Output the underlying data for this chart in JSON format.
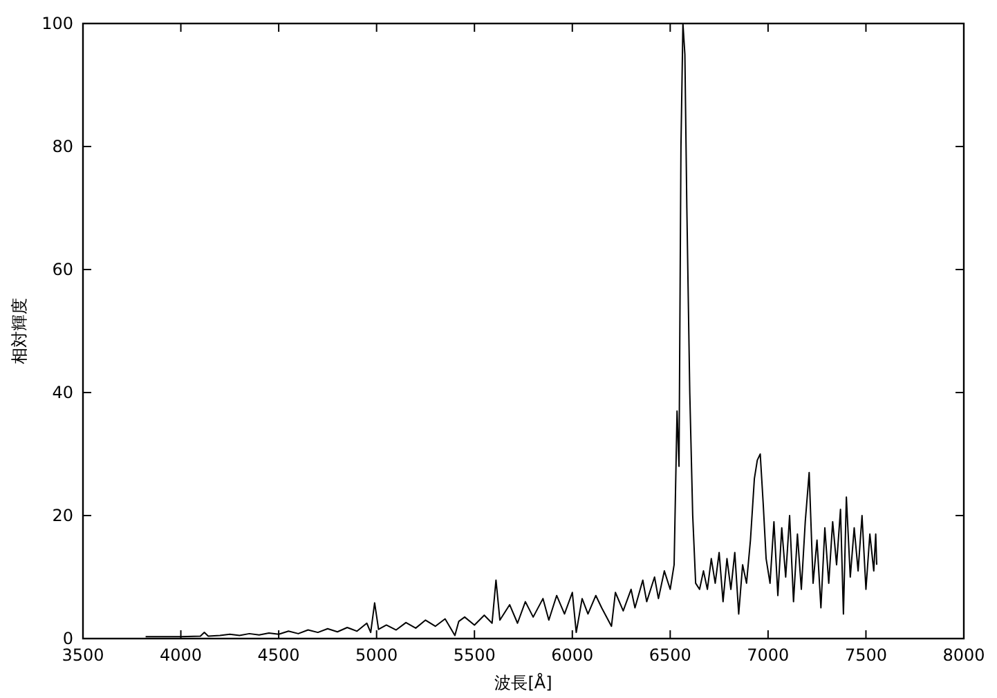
{
  "chart_data": {
    "type": "line",
    "xlabel": "波長[Å]",
    "ylabel": "相対輝度",
    "xlim": [
      3500,
      8000
    ],
    "xticks": [
      3500,
      4000,
      4500,
      5000,
      5500,
      6000,
      6500,
      7000,
      7500,
      8000
    ],
    "ylim": [
      0,
      100
    ],
    "yticks": [
      0,
      20,
      40,
      60,
      80,
      100
    ],
    "grid": false,
    "series": [
      {
        "color": "#000000",
        "x": [
          3820,
          3900,
          4000,
          4100,
          4120,
          4140,
          4200,
          4250,
          4300,
          4350,
          4400,
          4450,
          4500,
          4550,
          4600,
          4650,
          4700,
          4750,
          4800,
          4850,
          4900,
          4950,
          4970,
          4990,
          5010,
          5050,
          5100,
          5150,
          5200,
          5250,
          5300,
          5350,
          5400,
          5420,
          5450,
          5500,
          5550,
          5590,
          5610,
          5630,
          5680,
          5720,
          5760,
          5800,
          5850,
          5880,
          5920,
          5960,
          6000,
          6020,
          6050,
          6080,
          6120,
          6150,
          6200,
          6220,
          6260,
          6300,
          6320,
          6360,
          6380,
          6420,
          6440,
          6470,
          6500,
          6520,
          6535,
          6545,
          6555,
          6565,
          6575,
          6585,
          6600,
          6615,
          6630,
          6650,
          6670,
          6690,
          6710,
          6730,
          6750,
          6770,
          6790,
          6810,
          6830,
          6850,
          6870,
          6890,
          6910,
          6930,
          6945,
          6960,
          6975,
          6990,
          7010,
          7030,
          7050,
          7070,
          7090,
          7110,
          7130,
          7150,
          7170,
          7190,
          7210,
          7230,
          7250,
          7270,
          7290,
          7310,
          7330,
          7350,
          7370,
          7385,
          7400,
          7420,
          7440,
          7460,
          7480,
          7500,
          7520,
          7540,
          7550,
          7555
        ],
        "values": [
          0.3,
          0.3,
          0.3,
          0.4,
          1.0,
          0.4,
          0.5,
          0.7,
          0.5,
          0.8,
          0.6,
          0.9,
          0.7,
          1.2,
          0.8,
          1.4,
          1.0,
          1.6,
          1.1,
          1.8,
          1.2,
          2.5,
          1.0,
          5.8,
          1.5,
          2.2,
          1.4,
          2.6,
          1.7,
          3.0,
          2.0,
          3.2,
          0.5,
          2.8,
          3.5,
          2.2,
          3.8,
          2.5,
          9.5,
          3.0,
          5.5,
          2.5,
          6.0,
          3.5,
          6.5,
          3.0,
          7.0,
          4.0,
          7.5,
          1.0,
          6.5,
          4.0,
          7.0,
          5.0,
          2.0,
          7.5,
          4.5,
          8.0,
          5.0,
          9.5,
          6.0,
          10,
          6.5,
          11,
          8,
          12,
          37,
          28,
          80,
          100,
          95,
          70,
          40,
          20,
          9,
          8,
          11,
          8,
          13,
          9,
          14,
          6,
          13,
          8,
          14,
          4,
          12,
          9,
          16,
          26,
          29,
          30,
          22,
          13,
          9,
          19,
          7,
          18,
          10,
          20,
          6,
          17,
          8,
          19,
          27,
          9,
          16,
          5,
          18,
          9,
          19,
          12,
          21,
          4,
          23,
          10,
          18,
          11,
          20,
          8,
          17,
          11,
          17,
          12
        ]
      }
    ]
  }
}
